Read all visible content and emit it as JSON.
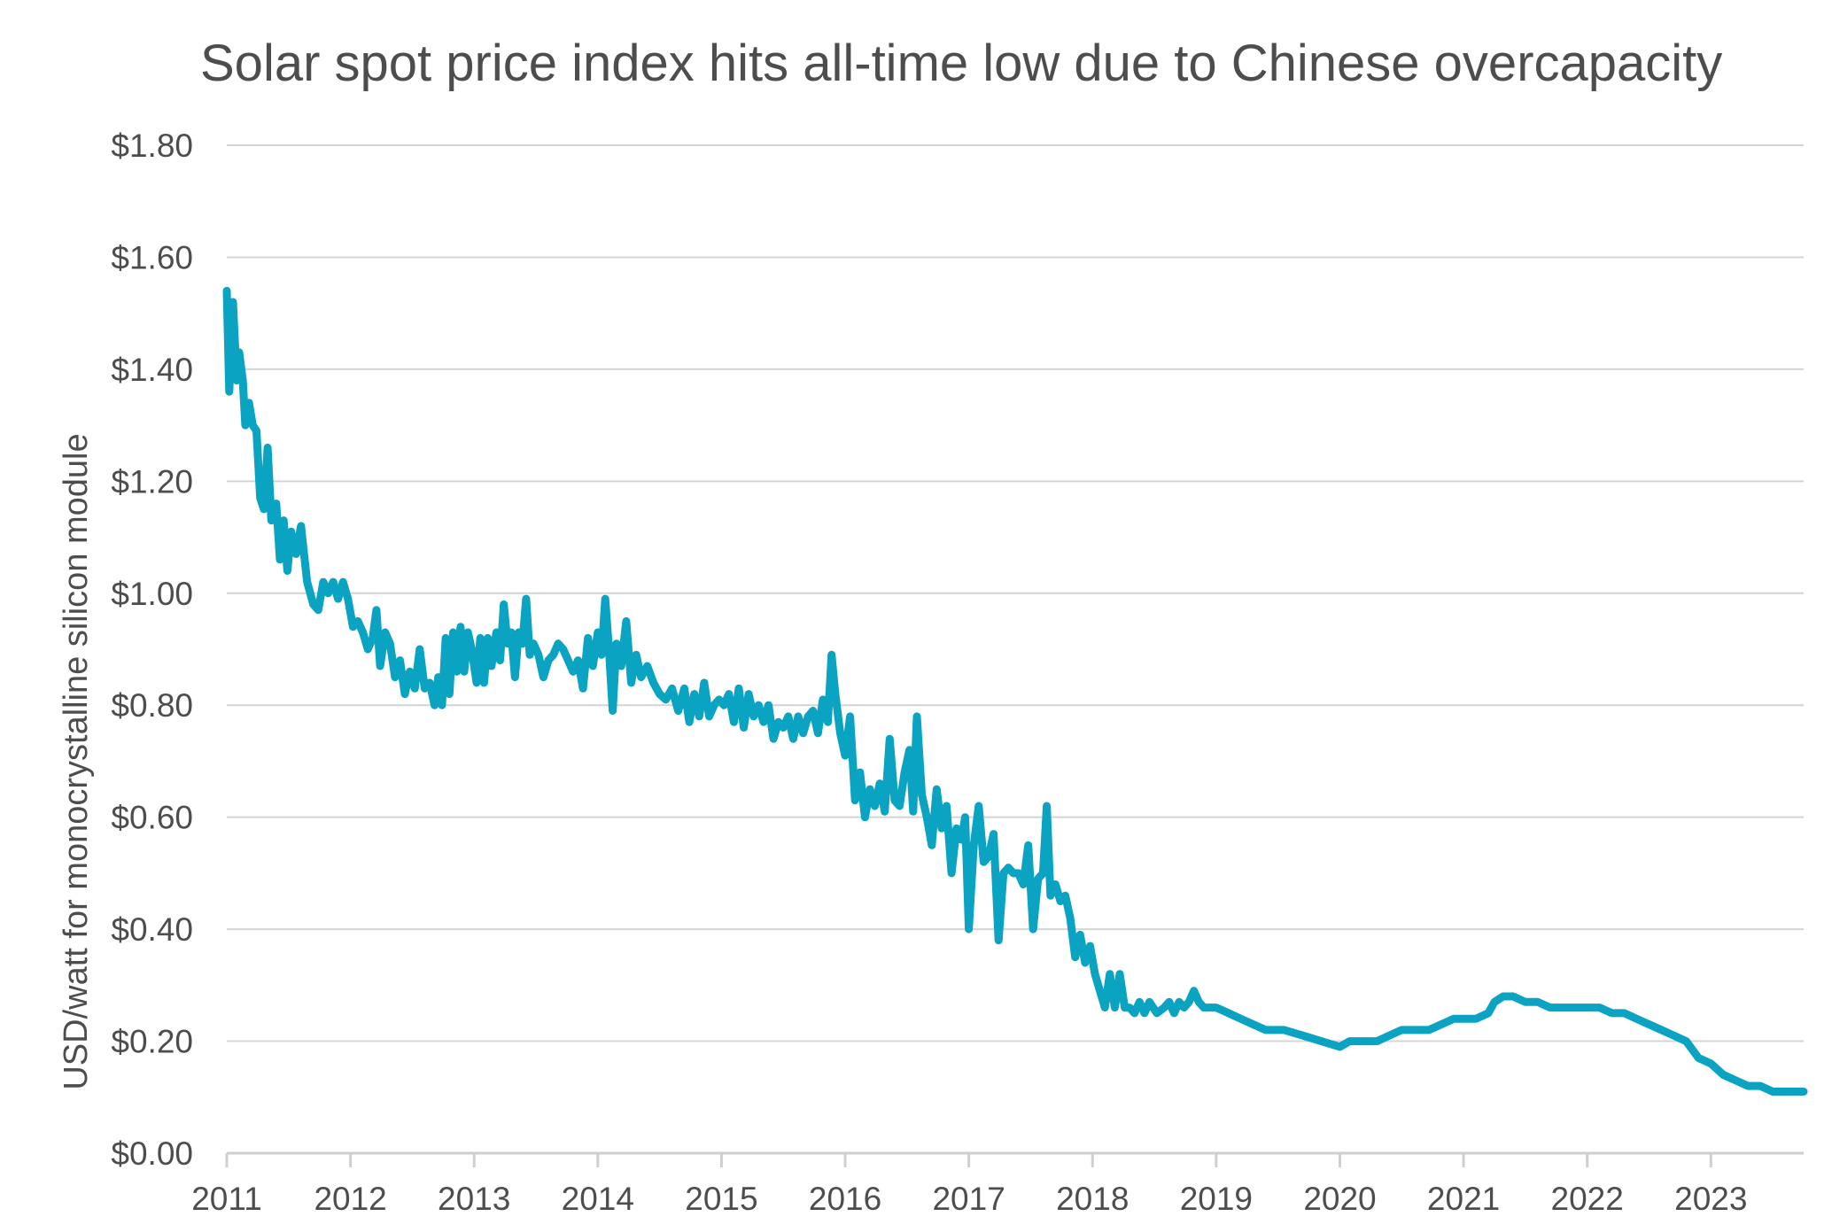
{
  "colors": {
    "series": "#0aa3c2",
    "text": "#4d4d4f",
    "grid": "#d4d4d4"
  },
  "chart_data": {
    "type": "line",
    "title": "Solar spot price index hits all-time low due to Chinese overcapacity",
    "xlabel": "",
    "ylabel": "USD/watt for monocrystalline silicon module",
    "xlim": [
      2011,
      2023.75
    ],
    "ylim": [
      0,
      1.8
    ],
    "grid": true,
    "legend": "none",
    "x_ticks": [
      2011,
      2012,
      2013,
      2014,
      2015,
      2016,
      2017,
      2018,
      2019,
      2020,
      2021,
      2022,
      2023
    ],
    "x_tick_labels": [
      "2011",
      "2012",
      "2013",
      "2014",
      "2015",
      "2016",
      "2017",
      "2018",
      "2019",
      "2020",
      "2021",
      "2022",
      "2023"
    ],
    "y_ticks": [
      0,
      0.2,
      0.4,
      0.6,
      0.8,
      1.0,
      1.2,
      1.4,
      1.6,
      1.8
    ],
    "y_tick_labels": [
      "$0.00",
      "$0.20",
      "$0.40",
      "$0.60",
      "$0.80",
      "$1.00",
      "$1.20",
      "$1.40",
      "$1.60",
      "$1.80"
    ],
    "series": [
      {
        "color": "#0aa3c2",
        "points": [
          [
            2011.0,
            1.54
          ],
          [
            2011.02,
            1.36
          ],
          [
            2011.05,
            1.52
          ],
          [
            2011.08,
            1.38
          ],
          [
            2011.1,
            1.43
          ],
          [
            2011.13,
            1.38
          ],
          [
            2011.15,
            1.3
          ],
          [
            2011.18,
            1.34
          ],
          [
            2011.21,
            1.3
          ],
          [
            2011.24,
            1.29
          ],
          [
            2011.27,
            1.17
          ],
          [
            2011.3,
            1.15
          ],
          [
            2011.33,
            1.26
          ],
          [
            2011.36,
            1.13
          ],
          [
            2011.4,
            1.16
          ],
          [
            2011.43,
            1.06
          ],
          [
            2011.46,
            1.13
          ],
          [
            2011.49,
            1.04
          ],
          [
            2011.52,
            1.11
          ],
          [
            2011.56,
            1.07
          ],
          [
            2011.6,
            1.12
          ],
          [
            2011.65,
            1.02
          ],
          [
            2011.7,
            0.98
          ],
          [
            2011.74,
            0.97
          ],
          [
            2011.78,
            1.02
          ],
          [
            2011.82,
            1.0
          ],
          [
            2011.86,
            1.02
          ],
          [
            2011.9,
            0.99
          ],
          [
            2011.94,
            1.02
          ],
          [
            2011.98,
            0.99
          ],
          [
            2012.02,
            0.94
          ],
          [
            2012.06,
            0.95
          ],
          [
            2012.1,
            0.93
          ],
          [
            2012.14,
            0.9
          ],
          [
            2012.18,
            0.92
          ],
          [
            2012.21,
            0.97
          ],
          [
            2012.24,
            0.87
          ],
          [
            2012.28,
            0.93
          ],
          [
            2012.32,
            0.91
          ],
          [
            2012.36,
            0.85
          ],
          [
            2012.4,
            0.88
          ],
          [
            2012.44,
            0.82
          ],
          [
            2012.48,
            0.86
          ],
          [
            2012.52,
            0.83
          ],
          [
            2012.56,
            0.9
          ],
          [
            2012.6,
            0.83
          ],
          [
            2012.64,
            0.84
          ],
          [
            2012.68,
            0.8
          ],
          [
            2012.71,
            0.85
          ],
          [
            2012.74,
            0.8
          ],
          [
            2012.77,
            0.92
          ],
          [
            2012.8,
            0.82
          ],
          [
            2012.83,
            0.93
          ],
          [
            2012.86,
            0.86
          ],
          [
            2012.89,
            0.94
          ],
          [
            2012.92,
            0.86
          ],
          [
            2012.95,
            0.93
          ],
          [
            2012.98,
            0.9
          ],
          [
            2013.02,
            0.84
          ],
          [
            2013.05,
            0.92
          ],
          [
            2013.08,
            0.84
          ],
          [
            2013.11,
            0.92
          ],
          [
            2013.14,
            0.87
          ],
          [
            2013.18,
            0.93
          ],
          [
            2013.21,
            0.88
          ],
          [
            2013.24,
            0.98
          ],
          [
            2013.27,
            0.91
          ],
          [
            2013.3,
            0.93
          ],
          [
            2013.33,
            0.85
          ],
          [
            2013.36,
            0.93
          ],
          [
            2013.39,
            0.91
          ],
          [
            2013.42,
            0.99
          ],
          [
            2013.45,
            0.89
          ],
          [
            2013.48,
            0.91
          ],
          [
            2013.52,
            0.89
          ],
          [
            2013.56,
            0.85
          ],
          [
            2013.6,
            0.88
          ],
          [
            2013.64,
            0.89
          ],
          [
            2013.68,
            0.91
          ],
          [
            2013.72,
            0.9
          ],
          [
            2013.76,
            0.88
          ],
          [
            2013.8,
            0.86
          ],
          [
            2013.84,
            0.88
          ],
          [
            2013.88,
            0.83
          ],
          [
            2013.92,
            0.92
          ],
          [
            2013.96,
            0.87
          ],
          [
            2014.0,
            0.93
          ],
          [
            2014.03,
            0.89
          ],
          [
            2014.06,
            0.99
          ],
          [
            2014.09,
            0.9
          ],
          [
            2014.12,
            0.79
          ],
          [
            2014.15,
            0.91
          ],
          [
            2014.19,
            0.87
          ],
          [
            2014.23,
            0.95
          ],
          [
            2014.27,
            0.84
          ],
          [
            2014.31,
            0.89
          ],
          [
            2014.35,
            0.85
          ],
          [
            2014.4,
            0.87
          ],
          [
            2014.45,
            0.84
          ],
          [
            2014.5,
            0.82
          ],
          [
            2014.55,
            0.81
          ],
          [
            2014.6,
            0.83
          ],
          [
            2014.65,
            0.79
          ],
          [
            2014.7,
            0.83
          ],
          [
            2014.74,
            0.77
          ],
          [
            2014.78,
            0.82
          ],
          [
            2014.82,
            0.78
          ],
          [
            2014.86,
            0.84
          ],
          [
            2014.9,
            0.78
          ],
          [
            2014.94,
            0.8
          ],
          [
            2014.98,
            0.81
          ],
          [
            2015.02,
            0.8
          ],
          [
            2015.06,
            0.82
          ],
          [
            2015.1,
            0.77
          ],
          [
            2015.14,
            0.83
          ],
          [
            2015.18,
            0.76
          ],
          [
            2015.22,
            0.82
          ],
          [
            2015.26,
            0.78
          ],
          [
            2015.3,
            0.8
          ],
          [
            2015.34,
            0.77
          ],
          [
            2015.38,
            0.8
          ],
          [
            2015.42,
            0.74
          ],
          [
            2015.46,
            0.77
          ],
          [
            2015.5,
            0.76
          ],
          [
            2015.54,
            0.78
          ],
          [
            2015.58,
            0.74
          ],
          [
            2015.62,
            0.78
          ],
          [
            2015.66,
            0.75
          ],
          [
            2015.7,
            0.78
          ],
          [
            2015.74,
            0.79
          ],
          [
            2015.78,
            0.75
          ],
          [
            2015.82,
            0.81
          ],
          [
            2015.86,
            0.77
          ],
          [
            2015.89,
            0.89
          ],
          [
            2015.92,
            0.82
          ],
          [
            2015.96,
            0.75
          ],
          [
            2016.0,
            0.71
          ],
          [
            2016.04,
            0.78
          ],
          [
            2016.08,
            0.63
          ],
          [
            2016.12,
            0.68
          ],
          [
            2016.16,
            0.6
          ],
          [
            2016.2,
            0.65
          ],
          [
            2016.24,
            0.62
          ],
          [
            2016.28,
            0.66
          ],
          [
            2016.32,
            0.61
          ],
          [
            2016.36,
            0.74
          ],
          [
            2016.4,
            0.63
          ],
          [
            2016.44,
            0.62
          ],
          [
            2016.48,
            0.68
          ],
          [
            2016.52,
            0.72
          ],
          [
            2016.55,
            0.61
          ],
          [
            2016.58,
            0.78
          ],
          [
            2016.62,
            0.64
          ],
          [
            2016.66,
            0.6
          ],
          [
            2016.7,
            0.55
          ],
          [
            2016.74,
            0.65
          ],
          [
            2016.78,
            0.58
          ],
          [
            2016.82,
            0.62
          ],
          [
            2016.86,
            0.5
          ],
          [
            2016.9,
            0.58
          ],
          [
            2016.94,
            0.56
          ],
          [
            2016.97,
            0.6
          ],
          [
            2017.0,
            0.4
          ],
          [
            2017.04,
            0.55
          ],
          [
            2017.08,
            0.62
          ],
          [
            2017.12,
            0.52
          ],
          [
            2017.16,
            0.53
          ],
          [
            2017.2,
            0.57
          ],
          [
            2017.24,
            0.38
          ],
          [
            2017.28,
            0.5
          ],
          [
            2017.32,
            0.51
          ],
          [
            2017.36,
            0.5
          ],
          [
            2017.4,
            0.5
          ],
          [
            2017.44,
            0.48
          ],
          [
            2017.48,
            0.55
          ],
          [
            2017.52,
            0.4
          ],
          [
            2017.56,
            0.49
          ],
          [
            2017.6,
            0.5
          ],
          [
            2017.63,
            0.62
          ],
          [
            2017.66,
            0.46
          ],
          [
            2017.7,
            0.48
          ],
          [
            2017.74,
            0.45
          ],
          [
            2017.78,
            0.46
          ],
          [
            2017.82,
            0.42
          ],
          [
            2017.86,
            0.35
          ],
          [
            2017.9,
            0.39
          ],
          [
            2017.94,
            0.34
          ],
          [
            2017.98,
            0.37
          ],
          [
            2018.02,
            0.32
          ],
          [
            2018.06,
            0.29
          ],
          [
            2018.1,
            0.26
          ],
          [
            2018.14,
            0.32
          ],
          [
            2018.18,
            0.26
          ],
          [
            2018.22,
            0.32
          ],
          [
            2018.26,
            0.26
          ],
          [
            2018.3,
            0.26
          ],
          [
            2018.34,
            0.25
          ],
          [
            2018.38,
            0.27
          ],
          [
            2018.42,
            0.25
          ],
          [
            2018.46,
            0.27
          ],
          [
            2018.52,
            0.25
          ],
          [
            2018.58,
            0.26
          ],
          [
            2018.62,
            0.27
          ],
          [
            2018.66,
            0.25
          ],
          [
            2018.7,
            0.27
          ],
          [
            2018.74,
            0.26
          ],
          [
            2018.78,
            0.27
          ],
          [
            2018.82,
            0.29
          ],
          [
            2018.86,
            0.27
          ],
          [
            2018.9,
            0.26
          ],
          [
            2019.0,
            0.26
          ],
          [
            2019.1,
            0.25
          ],
          [
            2019.2,
            0.24
          ],
          [
            2019.3,
            0.23
          ],
          [
            2019.4,
            0.22
          ],
          [
            2019.55,
            0.22
          ],
          [
            2019.7,
            0.21
          ],
          [
            2019.85,
            0.2
          ],
          [
            2020.0,
            0.19
          ],
          [
            2020.08,
            0.2
          ],
          [
            2020.2,
            0.2
          ],
          [
            2020.3,
            0.2
          ],
          [
            2020.4,
            0.21
          ],
          [
            2020.5,
            0.22
          ],
          [
            2020.6,
            0.22
          ],
          [
            2020.72,
            0.22
          ],
          [
            2020.82,
            0.23
          ],
          [
            2020.92,
            0.24
          ],
          [
            2021.0,
            0.24
          ],
          [
            2021.1,
            0.24
          ],
          [
            2021.2,
            0.25
          ],
          [
            2021.25,
            0.27
          ],
          [
            2021.32,
            0.28
          ],
          [
            2021.4,
            0.28
          ],
          [
            2021.5,
            0.27
          ],
          [
            2021.6,
            0.27
          ],
          [
            2021.7,
            0.26
          ],
          [
            2021.8,
            0.26
          ],
          [
            2021.9,
            0.26
          ],
          [
            2022.0,
            0.26
          ],
          [
            2022.1,
            0.26
          ],
          [
            2022.2,
            0.25
          ],
          [
            2022.3,
            0.25
          ],
          [
            2022.4,
            0.24
          ],
          [
            2022.5,
            0.23
          ],
          [
            2022.6,
            0.22
          ],
          [
            2022.7,
            0.21
          ],
          [
            2022.8,
            0.2
          ],
          [
            2022.9,
            0.17
          ],
          [
            2023.0,
            0.16
          ],
          [
            2023.1,
            0.14
          ],
          [
            2023.2,
            0.13
          ],
          [
            2023.3,
            0.12
          ],
          [
            2023.4,
            0.12
          ],
          [
            2023.5,
            0.11
          ],
          [
            2023.6,
            0.11
          ],
          [
            2023.75,
            0.11
          ]
        ]
      }
    ]
  }
}
